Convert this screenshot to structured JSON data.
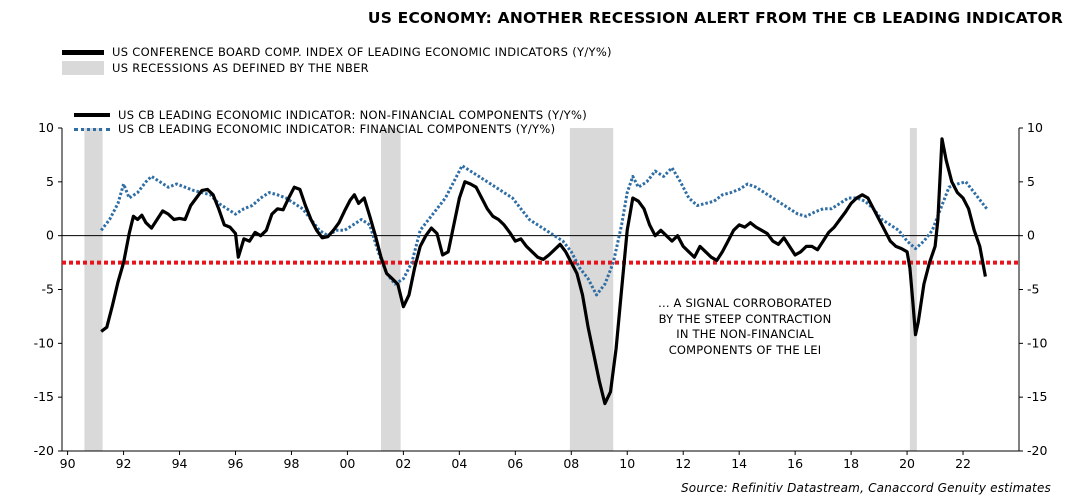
{
  "chart_data": {
    "type": "line",
    "title": "US ECONOMY: ANOTHER RECESSION ALERT FROM THE CB LEADING INDICATOR",
    "legend_top": [
      {
        "label": "US CONFERENCE BOARD COMP. INDEX OF LEADING ECONOMIC INDICATORS (Y/Y%)",
        "style": "black-line"
      },
      {
        "label": "US RECESSIONS AS DEFINED BY THE NBER",
        "style": "gray-band"
      }
    ],
    "ylim": [
      -20,
      10
    ],
    "yticks": [
      10,
      5,
      0,
      -5,
      -10,
      -15,
      -20
    ],
    "xlim": [
      1989.8,
      2024.0
    ],
    "xticks": [
      1990,
      1992,
      1994,
      1996,
      1998,
      2000,
      2002,
      2004,
      2006,
      2008,
      2010,
      2012,
      2014,
      2016,
      2018,
      2020,
      2022
    ],
    "xtick_labels": [
      "90",
      "92",
      "94",
      "96",
      "98",
      "00",
      "02",
      "04",
      "06",
      "08",
      "10",
      "12",
      "14",
      "16",
      "18",
      "20",
      "22"
    ],
    "recessions": [
      [
        1990.6,
        1991.25
      ],
      [
        2001.2,
        2001.9
      ],
      [
        2007.95,
        2009.5
      ],
      [
        2020.1,
        2020.35
      ]
    ],
    "threshold": {
      "value": -2.5,
      "color": "#e8141b",
      "style": "dotted"
    },
    "grid": false,
    "series": [
      {
        "name": "US CB LEADING ECONOMIC INDICATOR: NON-FINANCIAL COMPONENTS (Y/Y%)",
        "color": "#000000",
        "points": [
          [
            1991.2,
            -8.9
          ],
          [
            1991.4,
            -8.5
          ],
          [
            1991.6,
            -6.5
          ],
          [
            1991.8,
            -4.3
          ],
          [
            1992.0,
            -2.5
          ],
          [
            1992.2,
            0.2
          ],
          [
            1992.35,
            1.8
          ],
          [
            1992.5,
            1.5
          ],
          [
            1992.65,
            1.9
          ],
          [
            1992.8,
            1.2
          ],
          [
            1993.0,
            0.7
          ],
          [
            1993.2,
            1.5
          ],
          [
            1993.4,
            2.3
          ],
          [
            1993.6,
            2.0
          ],
          [
            1993.8,
            1.5
          ],
          [
            1994.0,
            1.6
          ],
          [
            1994.2,
            1.5
          ],
          [
            1994.4,
            2.8
          ],
          [
            1994.6,
            3.5
          ],
          [
            1994.8,
            4.2
          ],
          [
            1995.0,
            4.3
          ],
          [
            1995.2,
            3.8
          ],
          [
            1995.4,
            2.5
          ],
          [
            1995.6,
            1.0
          ],
          [
            1995.8,
            0.8
          ],
          [
            1996.0,
            0.2
          ],
          [
            1996.1,
            -2.0
          ],
          [
            1996.3,
            -0.3
          ],
          [
            1996.5,
            -0.5
          ],
          [
            1996.7,
            0.3
          ],
          [
            1996.9,
            0.0
          ],
          [
            1997.1,
            0.5
          ],
          [
            1997.3,
            2.0
          ],
          [
            1997.5,
            2.5
          ],
          [
            1997.7,
            2.4
          ],
          [
            1997.9,
            3.5
          ],
          [
            1998.1,
            4.5
          ],
          [
            1998.3,
            4.3
          ],
          [
            1998.5,
            2.8
          ],
          [
            1998.7,
            1.5
          ],
          [
            1998.9,
            0.5
          ],
          [
            1999.1,
            -0.2
          ],
          [
            1999.3,
            -0.1
          ],
          [
            1999.5,
            0.5
          ],
          [
            1999.7,
            1.2
          ],
          [
            1999.9,
            2.3
          ],
          [
            2000.1,
            3.3
          ],
          [
            2000.25,
            3.8
          ],
          [
            2000.4,
            3.0
          ],
          [
            2000.6,
            3.5
          ],
          [
            2000.8,
            1.8
          ],
          [
            2001.0,
            0.0
          ],
          [
            2001.2,
            -2.0
          ],
          [
            2001.4,
            -3.5
          ],
          [
            2001.6,
            -4.0
          ],
          [
            2001.8,
            -4.5
          ],
          [
            2002.0,
            -6.6
          ],
          [
            2002.2,
            -5.5
          ],
          [
            2002.4,
            -3.0
          ],
          [
            2002.6,
            -1.0
          ],
          [
            2002.8,
            0.0
          ],
          [
            2003.0,
            0.7
          ],
          [
            2003.2,
            0.2
          ],
          [
            2003.4,
            -1.8
          ],
          [
            2003.6,
            -1.5
          ],
          [
            2003.8,
            1.0
          ],
          [
            2004.0,
            3.5
          ],
          [
            2004.2,
            5.0
          ],
          [
            2004.4,
            4.8
          ],
          [
            2004.6,
            4.5
          ],
          [
            2004.8,
            3.5
          ],
          [
            2005.0,
            2.5
          ],
          [
            2005.2,
            1.8
          ],
          [
            2005.4,
            1.5
          ],
          [
            2005.6,
            1.0
          ],
          [
            2005.8,
            0.3
          ],
          [
            2006.0,
            -0.5
          ],
          [
            2006.2,
            -0.3
          ],
          [
            2006.4,
            -1.0
          ],
          [
            2006.6,
            -1.5
          ],
          [
            2006.8,
            -2.0
          ],
          [
            2007.0,
            -2.2
          ],
          [
            2007.2,
            -1.8
          ],
          [
            2007.4,
            -1.3
          ],
          [
            2007.6,
            -0.8
          ],
          [
            2007.8,
            -1.5
          ],
          [
            2008.0,
            -2.5
          ],
          [
            2008.2,
            -3.5
          ],
          [
            2008.4,
            -5.5
          ],
          [
            2008.6,
            -8.5
          ],
          [
            2008.8,
            -11.0
          ],
          [
            2009.0,
            -13.5
          ],
          [
            2009.2,
            -15.6
          ],
          [
            2009.4,
            -14.5
          ],
          [
            2009.6,
            -10.5
          ],
          [
            2009.8,
            -5.0
          ],
          [
            2010.0,
            0.5
          ],
          [
            2010.2,
            3.5
          ],
          [
            2010.4,
            3.2
          ],
          [
            2010.6,
            2.5
          ],
          [
            2010.8,
            1.0
          ],
          [
            2011.0,
            0.0
          ],
          [
            2011.2,
            0.5
          ],
          [
            2011.4,
            0.0
          ],
          [
            2011.6,
            -0.5
          ],
          [
            2011.8,
            0.0
          ],
          [
            2012.0,
            -1.0
          ],
          [
            2012.2,
            -1.5
          ],
          [
            2012.4,
            -2.0
          ],
          [
            2012.6,
            -1.0
          ],
          [
            2012.8,
            -1.5
          ],
          [
            2013.0,
            -2.0
          ],
          [
            2013.2,
            -2.3
          ],
          [
            2013.4,
            -1.5
          ],
          [
            2013.6,
            -0.5
          ],
          [
            2013.8,
            0.5
          ],
          [
            2014.0,
            1.0
          ],
          [
            2014.2,
            0.8
          ],
          [
            2014.4,
            1.2
          ],
          [
            2014.6,
            0.8
          ],
          [
            2014.8,
            0.5
          ],
          [
            2015.0,
            0.2
          ],
          [
            2015.2,
            -0.5
          ],
          [
            2015.4,
            -0.8
          ],
          [
            2015.6,
            -0.2
          ],
          [
            2015.8,
            -1.0
          ],
          [
            2016.0,
            -1.8
          ],
          [
            2016.2,
            -1.5
          ],
          [
            2016.4,
            -1.0
          ],
          [
            2016.6,
            -1.0
          ],
          [
            2016.8,
            -1.3
          ],
          [
            2017.0,
            -0.5
          ],
          [
            2017.2,
            0.3
          ],
          [
            2017.4,
            0.8
          ],
          [
            2017.6,
            1.5
          ],
          [
            2017.8,
            2.2
          ],
          [
            2018.0,
            3.0
          ],
          [
            2018.2,
            3.5
          ],
          [
            2018.4,
            3.8
          ],
          [
            2018.6,
            3.5
          ],
          [
            2018.8,
            2.5
          ],
          [
            2019.0,
            1.5
          ],
          [
            2019.2,
            0.5
          ],
          [
            2019.4,
            -0.5
          ],
          [
            2019.6,
            -1.0
          ],
          [
            2019.8,
            -1.2
          ],
          [
            2020.0,
            -1.5
          ],
          [
            2020.1,
            -3.0
          ],
          [
            2020.2,
            -6.0
          ],
          [
            2020.3,
            -9.2
          ],
          [
            2020.4,
            -8.0
          ],
          [
            2020.6,
            -4.5
          ],
          [
            2020.8,
            -2.5
          ],
          [
            2021.0,
            -1.0
          ],
          [
            2021.1,
            1.5
          ],
          [
            2021.25,
            9.0
          ],
          [
            2021.4,
            7.0
          ],
          [
            2021.6,
            5.0
          ],
          [
            2021.8,
            4.0
          ],
          [
            2022.0,
            3.5
          ],
          [
            2022.2,
            2.5
          ],
          [
            2022.4,
            0.5
          ],
          [
            2022.6,
            -1.0
          ],
          [
            2022.8,
            -3.8
          ]
        ]
      },
      {
        "name": "US CB LEADING ECONOMIC INDICATOR: FINANCIAL COMPONENTS (Y/Y%)",
        "color": "#2f6ea5",
        "points": [
          [
            1991.2,
            0.5
          ],
          [
            1991.5,
            1.5
          ],
          [
            1991.8,
            3.0
          ],
          [
            1992.0,
            4.8
          ],
          [
            1992.2,
            3.5
          ],
          [
            1992.5,
            4.0
          ],
          [
            1992.8,
            5.0
          ],
          [
            1993.0,
            5.5
          ],
          [
            1993.3,
            5.0
          ],
          [
            1993.6,
            4.5
          ],
          [
            1993.9,
            4.8
          ],
          [
            1994.2,
            4.5
          ],
          [
            1994.5,
            4.2
          ],
          [
            1994.8,
            4.0
          ],
          [
            1995.1,
            3.8
          ],
          [
            1995.4,
            3.0
          ],
          [
            1995.7,
            2.5
          ],
          [
            1996.0,
            2.0
          ],
          [
            1996.3,
            2.5
          ],
          [
            1996.6,
            2.8
          ],
          [
            1996.9,
            3.5
          ],
          [
            1997.2,
            4.0
          ],
          [
            1997.5,
            3.8
          ],
          [
            1997.8,
            3.5
          ],
          [
            1998.1,
            3.0
          ],
          [
            1998.4,
            2.5
          ],
          [
            1998.7,
            1.5
          ],
          [
            1999.0,
            0.5
          ],
          [
            1999.3,
            0.0
          ],
          [
            1999.6,
            0.5
          ],
          [
            1999.9,
            0.5
          ],
          [
            2000.2,
            1.0
          ],
          [
            2000.5,
            1.5
          ],
          [
            2000.8,
            1.0
          ],
          [
            2001.1,
            -1.5
          ],
          [
            2001.4,
            -3.5
          ],
          [
            2001.7,
            -4.5
          ],
          [
            2002.0,
            -4.0
          ],
          [
            2002.3,
            -2.5
          ],
          [
            2002.6,
            0.5
          ],
          [
            2002.9,
            1.5
          ],
          [
            2003.2,
            2.5
          ],
          [
            2003.5,
            3.5
          ],
          [
            2003.8,
            5.0
          ],
          [
            2004.1,
            6.5
          ],
          [
            2004.4,
            6.0
          ],
          [
            2004.7,
            5.5
          ],
          [
            2005.0,
            5.0
          ],
          [
            2005.3,
            4.5
          ],
          [
            2005.6,
            4.0
          ],
          [
            2005.9,
            3.5
          ],
          [
            2006.2,
            2.5
          ],
          [
            2006.5,
            1.5
          ],
          [
            2006.8,
            1.0
          ],
          [
            2007.1,
            0.5
          ],
          [
            2007.4,
            0.0
          ],
          [
            2007.7,
            -0.5
          ],
          [
            2008.0,
            -1.5
          ],
          [
            2008.3,
            -3.0
          ],
          [
            2008.6,
            -4.0
          ],
          [
            2008.9,
            -5.5
          ],
          [
            2009.2,
            -4.5
          ],
          [
            2009.5,
            -2.5
          ],
          [
            2009.8,
            1.0
          ],
          [
            2010.0,
            4.0
          ],
          [
            2010.2,
            5.5
          ],
          [
            2010.4,
            4.5
          ],
          [
            2010.7,
            5.0
          ],
          [
            2011.0,
            6.0
          ],
          [
            2011.3,
            5.5
          ],
          [
            2011.6,
            6.3
          ],
          [
            2011.9,
            5.0
          ],
          [
            2012.2,
            3.5
          ],
          [
            2012.5,
            2.8
          ],
          [
            2012.8,
            3.0
          ],
          [
            2013.1,
            3.2
          ],
          [
            2013.4,
            3.8
          ],
          [
            2013.7,
            4.0
          ],
          [
            2014.0,
            4.3
          ],
          [
            2014.3,
            4.8
          ],
          [
            2014.6,
            4.5
          ],
          [
            2014.9,
            4.0
          ],
          [
            2015.2,
            3.5
          ],
          [
            2015.5,
            3.0
          ],
          [
            2015.8,
            2.5
          ],
          [
            2016.1,
            2.0
          ],
          [
            2016.4,
            1.8
          ],
          [
            2016.7,
            2.2
          ],
          [
            2017.0,
            2.5
          ],
          [
            2017.3,
            2.5
          ],
          [
            2017.6,
            3.0
          ],
          [
            2017.9,
            3.5
          ],
          [
            2018.2,
            3.5
          ],
          [
            2018.5,
            3.2
          ],
          [
            2018.8,
            2.5
          ],
          [
            2019.1,
            1.5
          ],
          [
            2019.4,
            1.0
          ],
          [
            2019.7,
            0.5
          ],
          [
            2020.0,
            -0.5
          ],
          [
            2020.3,
            -1.2
          ],
          [
            2020.6,
            -0.5
          ],
          [
            2020.9,
            0.5
          ],
          [
            2021.2,
            2.5
          ],
          [
            2021.5,
            4.5
          ],
          [
            2021.8,
            4.8
          ],
          [
            2022.1,
            5.0
          ],
          [
            2022.4,
            4.0
          ],
          [
            2022.7,
            3.0
          ],
          [
            2022.85,
            2.5
          ]
        ]
      }
    ],
    "annotation": [
      "... A SIGNAL CORROBORATED",
      "BY THE STEEP CONTRACTION",
      "IN THE NON-FINANCIAL",
      "COMPONENTS OF THE LEI"
    ],
    "source": "Source: Refinitiv Datastream, Canaccord Genuity estimates"
  }
}
